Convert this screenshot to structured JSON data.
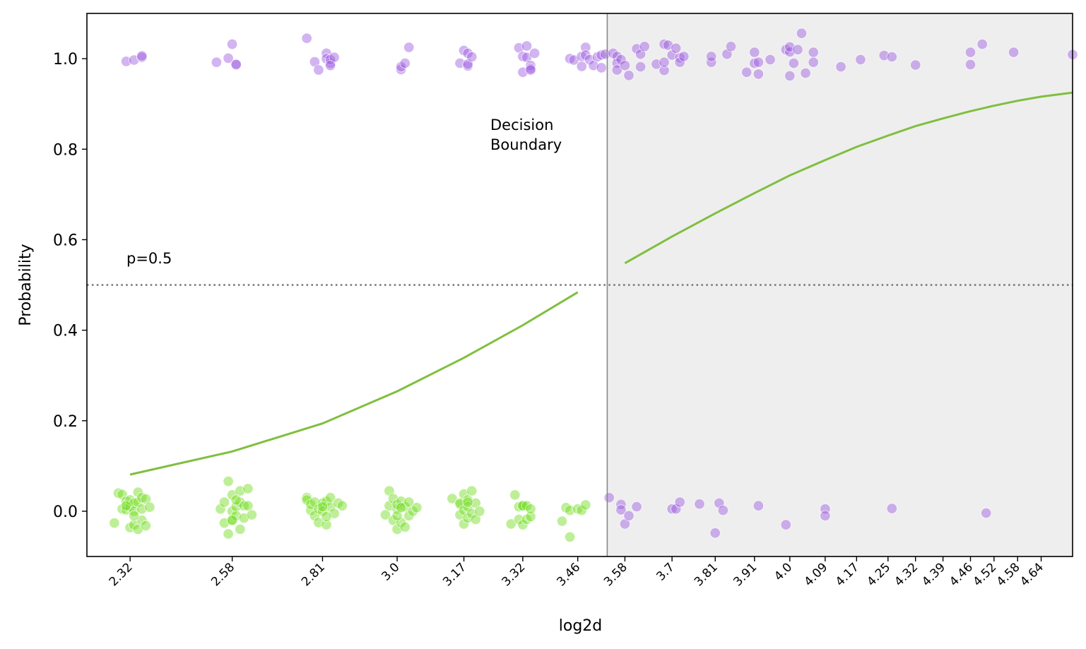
{
  "chart_data": {
    "type": "scatter",
    "xlabel": "log2d",
    "ylabel": "Probability",
    "xlim": [
      2.21,
      4.72
    ],
    "ylim": [
      -0.1,
      1.1
    ],
    "grid": false,
    "x_ticks": [
      "2.32",
      "2.58",
      "2.81",
      "3.0",
      "3.17",
      "3.32",
      "3.46",
      "3.58",
      "3.7",
      "3.81",
      "3.91",
      "4.0",
      "4.09",
      "4.17",
      "4.25",
      "4.32",
      "4.39",
      "4.46",
      "4.52",
      "4.58",
      "4.64"
    ],
    "y_ticks": [
      "0.0",
      "0.2",
      "0.4",
      "0.6",
      "0.8",
      "1.0"
    ],
    "decision_boundary": {
      "x": 3.535,
      "label_line1": "Decision",
      "label_line2": "Boundary"
    },
    "threshold": {
      "y": 0.5,
      "label": "p=0.5"
    },
    "colors": {
      "positive": "#9b59e0",
      "negative": "#6fdc1a",
      "curve": "#7fbf3f",
      "shade": "#eeeeee",
      "boundary": "#888888",
      "threshold": "#777777"
    },
    "curve": {
      "segments": [
        {
          "x": [
            2.32,
            2.58,
            2.81,
            3.0,
            3.17,
            3.32,
            3.46
          ],
          "y": [
            0.081,
            0.132,
            0.194,
            0.265,
            0.339,
            0.411,
            0.484
          ]
        },
        {
          "x": [
            3.58,
            3.7,
            3.81,
            3.91,
            4.0,
            4.09,
            4.17,
            4.25,
            4.32,
            4.39,
            4.46,
            4.52,
            4.58,
            4.64,
            4.72
          ],
          "y": [
            0.548,
            0.607,
            0.658,
            0.703,
            0.742,
            0.776,
            0.805,
            0.83,
            0.851,
            0.868,
            0.884,
            0.896,
            0.907,
            0.916,
            0.925
          ]
        }
      ]
    },
    "series": [
      {
        "label": 1,
        "points": [
          [
            2.31,
            0.994
          ],
          [
            2.33,
            0.997
          ],
          [
            2.35,
            1.003
          ],
          [
            2.35,
            1.006
          ],
          [
            2.54,
            0.992
          ],
          [
            2.57,
            1.001
          ],
          [
            2.58,
            1.032
          ],
          [
            2.59,
            0.988
          ],
          [
            2.59,
            0.987
          ],
          [
            2.77,
            1.045
          ],
          [
            2.79,
            0.993
          ],
          [
            2.8,
            0.975
          ],
          [
            2.82,
            1.012
          ],
          [
            2.82,
            1.0
          ],
          [
            2.83,
            0.99
          ],
          [
            2.83,
            0.998
          ],
          [
            2.84,
            1.003
          ],
          [
            2.83,
            0.985
          ],
          [
            3.01,
            0.976
          ],
          [
            3.01,
            0.982
          ],
          [
            3.02,
            0.99
          ],
          [
            3.03,
            1.025
          ],
          [
            3.16,
            0.99
          ],
          [
            3.17,
            1.018
          ],
          [
            3.18,
            1.012
          ],
          [
            3.18,
            0.984
          ],
          [
            3.18,
            0.988
          ],
          [
            3.19,
            1.004
          ],
          [
            3.31,
            1.024
          ],
          [
            3.32,
            1.005
          ],
          [
            3.32,
            0.97
          ],
          [
            3.33,
            1.028
          ],
          [
            3.33,
            1.003
          ],
          [
            3.34,
            0.985
          ],
          [
            3.34,
            0.978
          ],
          [
            3.35,
            1.012
          ],
          [
            3.34,
            0.975
          ],
          [
            3.44,
            1.0
          ],
          [
            3.45,
            0.997
          ],
          [
            3.47,
            1.005
          ],
          [
            3.47,
            0.983
          ],
          [
            3.48,
            1.025
          ],
          [
            3.48,
            1.008
          ],
          [
            3.49,
            0.998
          ],
          [
            3.5,
            0.985
          ],
          [
            3.51,
            1.004
          ],
          [
            3.52,
            0.98
          ],
          [
            3.52,
            1.008
          ],
          [
            3.53,
            1.01
          ],
          [
            3.54,
            0.03
          ],
          [
            3.57,
            0.015
          ],
          [
            3.57,
            0.003
          ],
          [
            3.58,
            -0.028
          ],
          [
            3.59,
            -0.01
          ],
          [
            3.61,
            0.01
          ],
          [
            3.7,
            0.005
          ],
          [
            3.71,
            0.005
          ],
          [
            3.72,
            0.02
          ],
          [
            3.77,
            0.016
          ],
          [
            3.81,
            -0.048
          ],
          [
            3.82,
            0.018
          ],
          [
            3.83,
            0.002
          ],
          [
            3.92,
            0.012
          ],
          [
            3.99,
            -0.03
          ],
          [
            4.09,
            0.005
          ],
          [
            4.09,
            -0.01
          ],
          [
            4.26,
            0.006
          ],
          [
            4.5,
            -0.004
          ]
        ]
      },
      {
        "label": 0,
        "points": [
          [
            2.28,
            -0.026
          ],
          [
            2.29,
            0.04
          ],
          [
            2.3,
            0.037
          ],
          [
            2.3,
            0.005
          ],
          [
            2.31,
            0.003
          ],
          [
            2.31,
            0.022
          ],
          [
            2.32,
            0.01
          ],
          [
            2.32,
            -0.036
          ],
          [
            2.32,
            0.025
          ],
          [
            2.33,
            0.018
          ],
          [
            2.33,
            -0.03
          ],
          [
            2.33,
            0.0
          ],
          [
            2.34,
            0.042
          ],
          [
            2.34,
            -0.04
          ],
          [
            2.34,
            0.02
          ],
          [
            2.35,
            0.03
          ],
          [
            2.35,
            -0.02
          ],
          [
            2.35,
            0.005
          ],
          [
            2.36,
            0.027
          ],
          [
            2.36,
            -0.032
          ],
          [
            2.37,
            0.009
          ],
          [
            2.33,
            -0.01
          ],
          [
            2.31,
            0.012
          ],
          [
            2.55,
            0.005
          ],
          [
            2.56,
            -0.026
          ],
          [
            2.56,
            0.02
          ],
          [
            2.57,
            -0.05
          ],
          [
            2.57,
            0.066
          ],
          [
            2.58,
            0.0
          ],
          [
            2.58,
            -0.02
          ],
          [
            2.58,
            0.036
          ],
          [
            2.59,
            0.01
          ],
          [
            2.59,
            -0.01
          ],
          [
            2.6,
            0.02
          ],
          [
            2.6,
            -0.04
          ],
          [
            2.6,
            0.045
          ],
          [
            2.61,
            0.012
          ],
          [
            2.61,
            -0.015
          ],
          [
            2.62,
            0.05
          ],
          [
            2.62,
            0.012
          ],
          [
            2.63,
            -0.008
          ],
          [
            2.58,
            -0.02
          ],
          [
            2.59,
            0.025
          ],
          [
            2.77,
            0.03
          ],
          [
            2.77,
            0.025
          ],
          [
            2.78,
            0.002
          ],
          [
            2.78,
            0.015
          ],
          [
            2.79,
            -0.01
          ],
          [
            2.79,
            0.02
          ],
          [
            2.8,
            -0.025
          ],
          [
            2.8,
            0.005
          ],
          [
            2.81,
            0.018
          ],
          [
            2.81,
            0.0
          ],
          [
            2.82,
            -0.03
          ],
          [
            2.82,
            0.022
          ],
          [
            2.83,
            0.01
          ],
          [
            2.83,
            0.03
          ],
          [
            2.84,
            -0.005
          ],
          [
            2.85,
            0.018
          ],
          [
            2.86,
            0.012
          ],
          [
            2.81,
            0.01
          ],
          [
            2.82,
            -0.012
          ],
          [
            2.97,
            -0.008
          ],
          [
            2.98,
            0.012
          ],
          [
            2.98,
            0.045
          ],
          [
            2.99,
            -0.02
          ],
          [
            2.99,
            0.028
          ],
          [
            3.0,
            0.005
          ],
          [
            3.0,
            -0.04
          ],
          [
            3.0,
            0.015
          ],
          [
            3.01,
            -0.025
          ],
          [
            3.01,
            0.022
          ],
          [
            3.02,
            -0.035
          ],
          [
            3.02,
            0.01
          ],
          [
            3.03,
            0.02
          ],
          [
            3.03,
            -0.01
          ],
          [
            3.04,
            0.0
          ],
          [
            3.05,
            0.008
          ],
          [
            3.0,
            -0.01
          ],
          [
            3.01,
            0.008
          ],
          [
            3.14,
            0.028
          ],
          [
            3.16,
            0.015
          ],
          [
            3.16,
            -0.008
          ],
          [
            3.16,
            0.018
          ],
          [
            3.17,
            -0.028
          ],
          [
            3.17,
            0.038
          ],
          [
            3.17,
            0.002
          ],
          [
            3.18,
            -0.015
          ],
          [
            3.18,
            0.025
          ],
          [
            3.18,
            0.01
          ],
          [
            3.19,
            0.045
          ],
          [
            3.19,
            -0.005
          ],
          [
            3.2,
            0.018
          ],
          [
            3.2,
            -0.018
          ],
          [
            3.21,
            0.0
          ],
          [
            3.18,
            0.02
          ],
          [
            3.29,
            -0.028
          ],
          [
            3.3,
            0.036
          ],
          [
            3.31,
            -0.018
          ],
          [
            3.31,
            0.01
          ],
          [
            3.32,
            0.012
          ],
          [
            3.32,
            -0.03
          ],
          [
            3.32,
            0.012
          ],
          [
            3.33,
            -0.018
          ],
          [
            3.33,
            0.012
          ],
          [
            3.34,
            -0.012
          ],
          [
            3.34,
            0.005
          ],
          [
            3.42,
            -0.022
          ],
          [
            3.43,
            0.008
          ],
          [
            3.44,
            -0.057
          ],
          [
            3.44,
            0.002
          ],
          [
            3.46,
            0.005
          ],
          [
            3.47,
            0.002
          ],
          [
            3.48,
            0.014
          ]
        ]
      },
      {
        "label": 1,
        "points": [
          [
            3.55,
            1.012
          ],
          [
            3.56,
            1.005
          ],
          [
            3.56,
            0.99
          ],
          [
            3.56,
            0.975
          ],
          [
            3.57,
            0.998
          ],
          [
            3.58,
            0.985
          ],
          [
            3.59,
            0.963
          ],
          [
            3.61,
            1.022
          ],
          [
            3.62,
            0.982
          ],
          [
            3.62,
            1.01
          ],
          [
            3.63,
            1.027
          ],
          [
            3.66,
            0.988
          ],
          [
            3.68,
            0.974
          ],
          [
            3.68,
            1.032
          ],
          [
            3.68,
            0.992
          ],
          [
            3.69,
            1.03
          ],
          [
            3.7,
            1.008
          ],
          [
            3.71,
            1.023
          ],
          [
            3.72,
            1.002
          ],
          [
            3.72,
            0.992
          ],
          [
            3.73,
            1.005
          ],
          [
            3.8,
            0.992
          ],
          [
            3.8,
            1.005
          ],
          [
            3.84,
            1.01
          ],
          [
            3.85,
            1.027
          ],
          [
            3.89,
            0.97
          ],
          [
            3.91,
            1.014
          ],
          [
            3.91,
            0.99
          ],
          [
            3.92,
            0.966
          ],
          [
            3.92,
            0.992
          ],
          [
            3.95,
            0.998
          ],
          [
            3.99,
            1.02
          ],
          [
            4.0,
            1.015
          ],
          [
            4.0,
            0.962
          ],
          [
            4.0,
            1.026
          ],
          [
            4.01,
            0.99
          ],
          [
            4.02,
            1.02
          ],
          [
            4.03,
            1.056
          ],
          [
            4.04,
            0.968
          ],
          [
            4.06,
            1.014
          ],
          [
            4.06,
            0.992
          ],
          [
            4.13,
            0.982
          ],
          [
            4.18,
            0.998
          ],
          [
            4.24,
            1.007
          ],
          [
            4.26,
            1.004
          ],
          [
            4.32,
            0.986
          ],
          [
            4.46,
            1.014
          ],
          [
            4.46,
            0.987
          ],
          [
            4.49,
            1.032
          ],
          [
            4.57,
            1.014
          ],
          [
            4.72,
            1.009
          ]
        ]
      }
    ]
  }
}
